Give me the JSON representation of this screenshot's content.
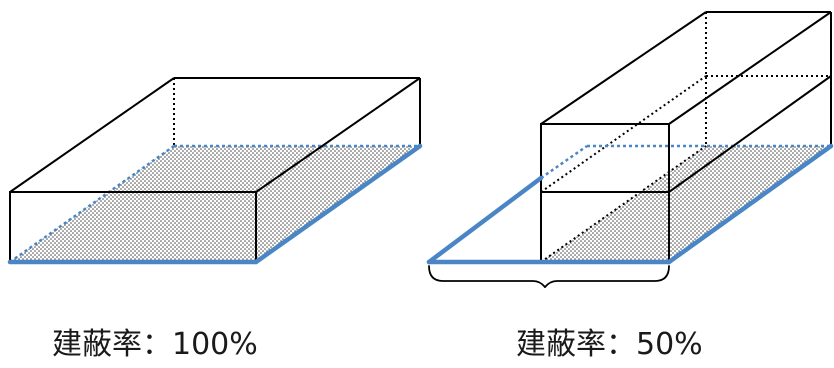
{
  "captions": {
    "left": "建蔽率：100%",
    "right": "建蔽率：50%"
  },
  "colors": {
    "outline": "#000000",
    "site_boundary": "#4a86c5",
    "site_fill_dots": "#3a3a3a",
    "background": "#ffffff"
  },
  "diagrams": [
    {
      "name": "building-coverage-100-percent",
      "coverage_percent": 100
    },
    {
      "name": "building-coverage-50-percent",
      "coverage_percent": 50
    }
  ]
}
